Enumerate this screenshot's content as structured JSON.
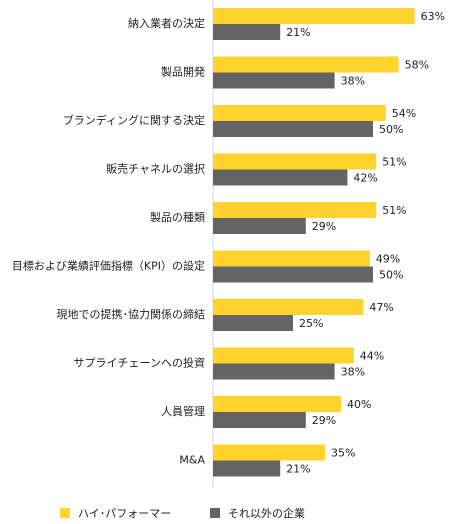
{
  "chart_data": {
    "type": "bar",
    "orientation": "horizontal",
    "categories": [
      "納入業者の決定",
      "製品開発",
      "ブランディングに関する決定",
      "販売チャネルの選択",
      "製品の種類",
      "目標および業績評価指標（KPI）の設定",
      "現地での提携･協力関係の締結",
      "サプライチェーンへの投資",
      "人員管理",
      "M&A"
    ],
    "series": [
      {
        "name": "ハイ･パフォーマー",
        "color": "#FFD22E",
        "values": [
          63,
          58,
          54,
          51,
          51,
          49,
          47,
          44,
          40,
          35
        ]
      },
      {
        "name": "それ以外の企業",
        "color": "#646464",
        "values": [
          21,
          38,
          50,
          42,
          29,
          50,
          25,
          38,
          29,
          21
        ]
      }
    ],
    "value_suffix": "%",
    "xlim": [
      0,
      100
    ],
    "grid": false,
    "legend_position": "bottom"
  }
}
